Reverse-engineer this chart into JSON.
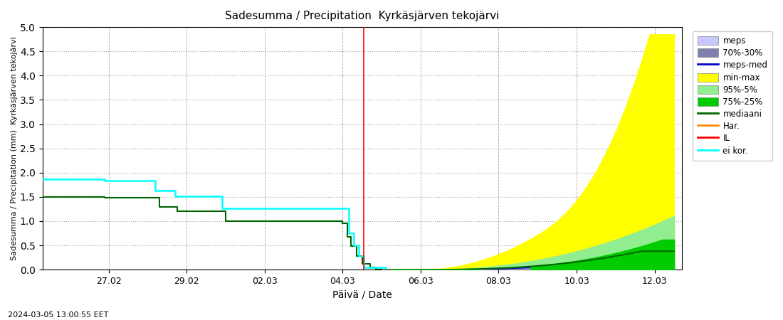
{
  "title": "Sadesumma / Precipitation  Kyrkäsjärven tekojärvi",
  "ylabel": "Sadesumma / Precipitation (mm)  Kyrkäsjärven tekojärvi",
  "xlabel": "Päivä / Date",
  "timestamp": "2024-03-05 13:00:55 EET",
  "ylim": [
    0,
    5
  ],
  "yticks": [
    0,
    0.5,
    1.0,
    1.5,
    2.0,
    2.5,
    3.0,
    3.5,
    4.0,
    4.5,
    5.0
  ],
  "bg_color": "#ffffff",
  "plot_bg_color": "#ffffff",
  "colors": {
    "meps": "#c8c8ff",
    "meps_70_30": "#8080b0",
    "meps_med": "#0000cc",
    "min_max": "#ffff00",
    "pct95_5": "#90ee90",
    "pct75_25": "#00cc00",
    "mediaani": "#006400",
    "har": "#ff8800",
    "IL": "#ff0000",
    "ei_kor": "#00ffff",
    "vline": "#ff0000"
  },
  "x_tick_labels": [
    "27.02",
    "29.02",
    "02.03",
    "04.03",
    "06.03",
    "08.03",
    "10.03",
    "12.03"
  ],
  "x_tick_positions": [
    2,
    4,
    6,
    8,
    10,
    12,
    14,
    16
  ]
}
